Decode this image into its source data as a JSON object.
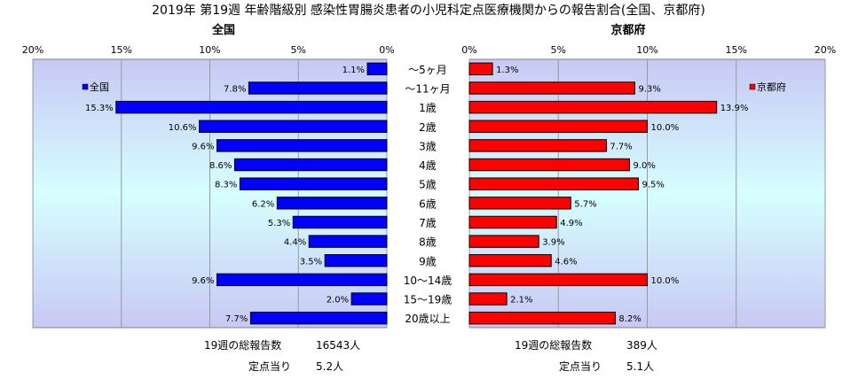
{
  "title": "2019年 第19週 年齢階級別 感染性胃腸炎患者の小児科定点医療機関からの報告割合(全国、京都府)",
  "chart_data": [
    {
      "type": "bar",
      "orientation": "horizontal",
      "direction": "right-to-left",
      "subtitle": "全国",
      "series": [
        {
          "name": "全国",
          "color": "#0000ff",
          "values": [
            1.1,
            7.8,
            15.3,
            10.6,
            9.6,
            8.6,
            8.3,
            6.2,
            5.3,
            4.4,
            3.5,
            9.6,
            2.0,
            7.7
          ]
        }
      ],
      "data_labels": [
        "1.1%",
        "7.8%",
        "15.3%",
        "10.6%",
        "9.6%",
        "8.6%",
        "8.3%",
        "6.2%",
        "5.3%",
        "4.4%",
        "3.5%",
        "9.6%",
        "2.0%",
        "7.7%"
      ],
      "ticks": [
        "20%",
        "15%",
        "10%",
        "5%",
        "0%"
      ],
      "xlim": [
        0,
        20
      ],
      "legend": "top-left",
      "footer": {
        "total_label": "19週の総報告数",
        "total_value": "16543人",
        "per_label": "定点当り",
        "per_value": "5.2人"
      }
    },
    {
      "type": "bar",
      "orientation": "horizontal",
      "direction": "left-to-right",
      "subtitle": "京都府",
      "series": [
        {
          "name": "京都府",
          "color": "#ff0000",
          "values": [
            1.3,
            9.3,
            13.9,
            10.0,
            7.7,
            9.0,
            9.5,
            5.7,
            4.9,
            3.9,
            4.6,
            10.0,
            2.1,
            8.2
          ]
        }
      ],
      "data_labels": [
        "1.3%",
        "9.3%",
        "13.9%",
        "10.0%",
        "7.7%",
        "9.0%",
        "9.5%",
        "5.7%",
        "4.9%",
        "3.9%",
        "4.6%",
        "10.0%",
        "2.1%",
        "8.2%"
      ],
      "ticks": [
        "0%",
        "5%",
        "10%",
        "15%",
        "20%"
      ],
      "xlim": [
        0,
        20
      ],
      "legend": "top-right",
      "footer": {
        "total_label": "19週の総報告数",
        "total_value": "389人",
        "per_label": "定点当り",
        "per_value": "5.1人"
      }
    }
  ],
  "categories": [
    "～5ヶ月",
    "～11ヶ月",
    "1歳",
    "2歳",
    "3歳",
    "4歳",
    "5歳",
    "6歳",
    "7歳",
    "8歳",
    "9歳",
    "10～14歳",
    "15～19歳",
    "20歳以上"
  ],
  "colors": {
    "plot_top": "#c8c8f4",
    "plot_middle": "#d6ffff",
    "plot_bottom": "#c8c8f4"
  }
}
